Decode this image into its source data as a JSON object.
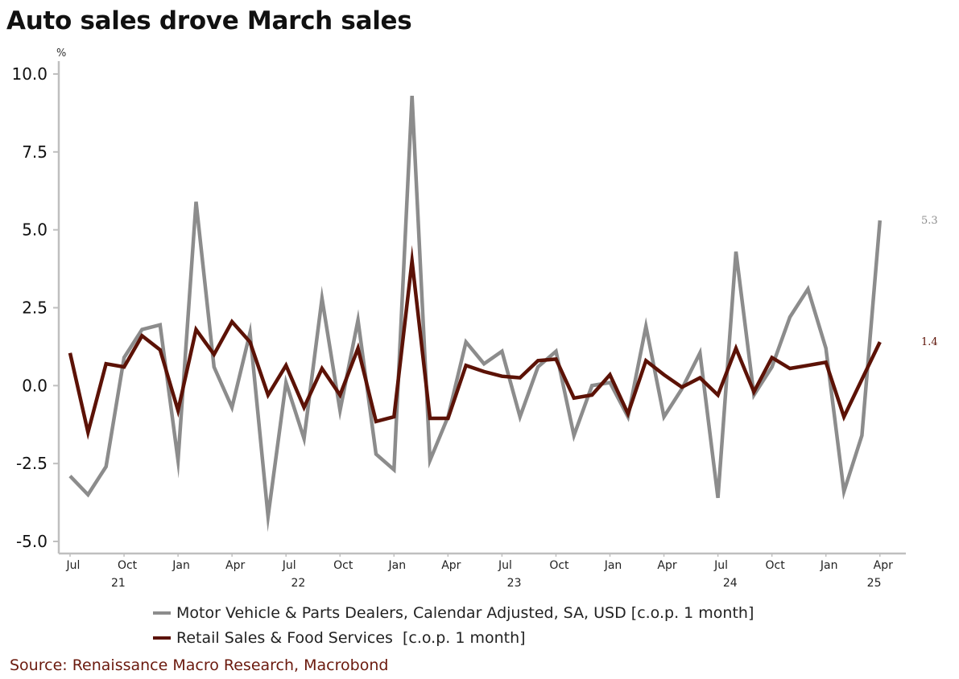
{
  "title": "Auto sales drove March sales",
  "source": "Source: Renaissance Macro Research, Macrobond",
  "colors": {
    "motor": "#8c8c8c",
    "retail": "#5c1206",
    "axis": "#bfbfbf"
  },
  "chart_data": {
    "type": "line",
    "title": "Auto sales drove March sales",
    "ylabel": "%",
    "ylim": [
      -5.0,
      10.0
    ],
    "yticks": [
      "10.0",
      "7.5",
      "5.0",
      "2.5",
      "0.0",
      "-2.5",
      "-5.0"
    ],
    "ytick_values": [
      10,
      7.5,
      5,
      2.5,
      0,
      -2.5,
      -5
    ],
    "xticks": [
      {
        "label": "Jul",
        "index": 0
      },
      {
        "label": "Oct",
        "index": 3
      },
      {
        "label": "Jan",
        "index": 6
      },
      {
        "label": "Apr",
        "index": 9
      },
      {
        "label": "Jul",
        "index": 12
      },
      {
        "label": "Oct",
        "index": 15
      },
      {
        "label": "Jan",
        "index": 18
      },
      {
        "label": "Apr",
        "index": 21
      },
      {
        "label": "Jul",
        "index": 24
      },
      {
        "label": "Oct",
        "index": 27
      },
      {
        "label": "Jan",
        "index": 30
      },
      {
        "label": "Apr",
        "index": 33
      },
      {
        "label": "Jul",
        "index": 36
      },
      {
        "label": "Oct",
        "index": 39
      },
      {
        "label": "Jan",
        "index": 42
      },
      {
        "label": "Apr",
        "index": 45
      }
    ],
    "years": [
      {
        "label": "21",
        "index": 2.5
      },
      {
        "label": "22",
        "index": 12.5
      },
      {
        "label": "23",
        "index": 24.5
      },
      {
        "label": "24",
        "index": 36.5
      },
      {
        "label": "25",
        "index": 44.5
      }
    ],
    "grid": false,
    "legend_position": "bottom",
    "series": [
      {
        "name": "Motor Vehicle & Parts Dealers, Calendar Adjusted, SA, USD [c.o.p. 1 month]",
        "color": "#8c8c8c",
        "end_label": "5.3",
        "values": [
          -2.9,
          -3.5,
          -2.6,
          0.9,
          1.8,
          1.95,
          -2.4,
          5.9,
          0.6,
          -0.7,
          1.7,
          -4.2,
          0.1,
          -1.7,
          2.8,
          -0.8,
          2.1,
          -2.2,
          -2.7,
          9.3,
          -2.4,
          -1.0,
          1.4,
          0.7,
          1.1,
          -1.0,
          0.6,
          1.1,
          -1.6,
          0.0,
          0.1,
          -1.0,
          1.9,
          -1.0,
          -0.1,
          1.05,
          -3.6,
          4.3,
          -0.3,
          0.6,
          2.2,
          3.1,
          1.2,
          -3.4,
          -1.6,
          5.3
        ]
      },
      {
        "name": "Retail Sales & Food Services  [c.o.p. 1 month]",
        "color": "#5c1206",
        "end_label": "1.4",
        "values": [
          1.05,
          -1.5,
          0.7,
          0.6,
          1.6,
          1.15,
          -0.8,
          1.8,
          1.0,
          2.05,
          1.4,
          -0.3,
          0.65,
          -0.7,
          0.55,
          -0.3,
          1.2,
          -1.15,
          -1.0,
          4.0,
          -1.05,
          -1.05,
          0.65,
          0.45,
          0.3,
          0.25,
          0.8,
          0.85,
          -0.4,
          -0.3,
          0.35,
          -0.9,
          0.8,
          0.35,
          -0.05,
          0.25,
          -0.3,
          1.2,
          -0.2,
          0.9,
          0.55,
          0.65,
          0.75,
          -1.0,
          0.2,
          1.4
        ]
      }
    ]
  }
}
